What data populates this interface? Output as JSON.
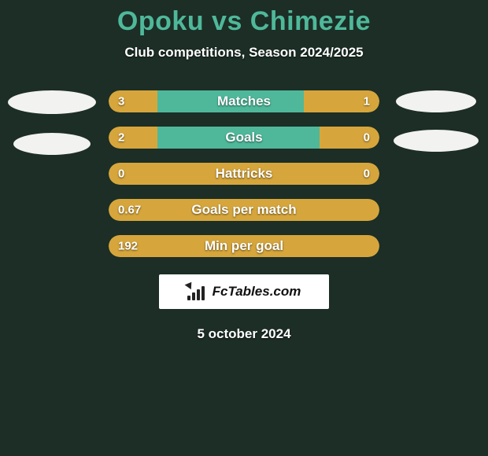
{
  "title": "Opoku vs Chimezie",
  "subtitle": "Club competitions, Season 2024/2025",
  "date": "5 october 2024",
  "badge": {
    "text": "FcTables.com"
  },
  "colors": {
    "background": "#1c2e26",
    "accent_teal": "#4fb89a",
    "accent_amber": "#d6a63c",
    "white": "#ffffff",
    "ellipse": "#f2f2f0",
    "text_shadow": "rgba(0,0,0,0.6)"
  },
  "stats": [
    {
      "label": "Matches",
      "left_value": "3",
      "right_value": "1",
      "seg_left_pct": 18,
      "seg_mid_pct": 54,
      "seg_right_pct": 28,
      "seg_left_color": "#d6a63c",
      "seg_mid_color": "#4fb89a",
      "seg_right_color": "#d6a63c"
    },
    {
      "label": "Goals",
      "left_value": "2",
      "right_value": "0",
      "seg_left_pct": 18,
      "seg_mid_pct": 60,
      "seg_right_pct": 22,
      "seg_left_color": "#d6a63c",
      "seg_mid_color": "#4fb89a",
      "seg_right_color": "#d6a63c"
    },
    {
      "label": "Hattricks",
      "left_value": "0",
      "right_value": "0",
      "full_amber": true
    },
    {
      "label": "Goals per match",
      "left_value": "0.67",
      "right_value": "",
      "full_amber": true
    },
    {
      "label": "Min per goal",
      "left_value": "192",
      "right_value": "",
      "full_amber": true
    }
  ]
}
